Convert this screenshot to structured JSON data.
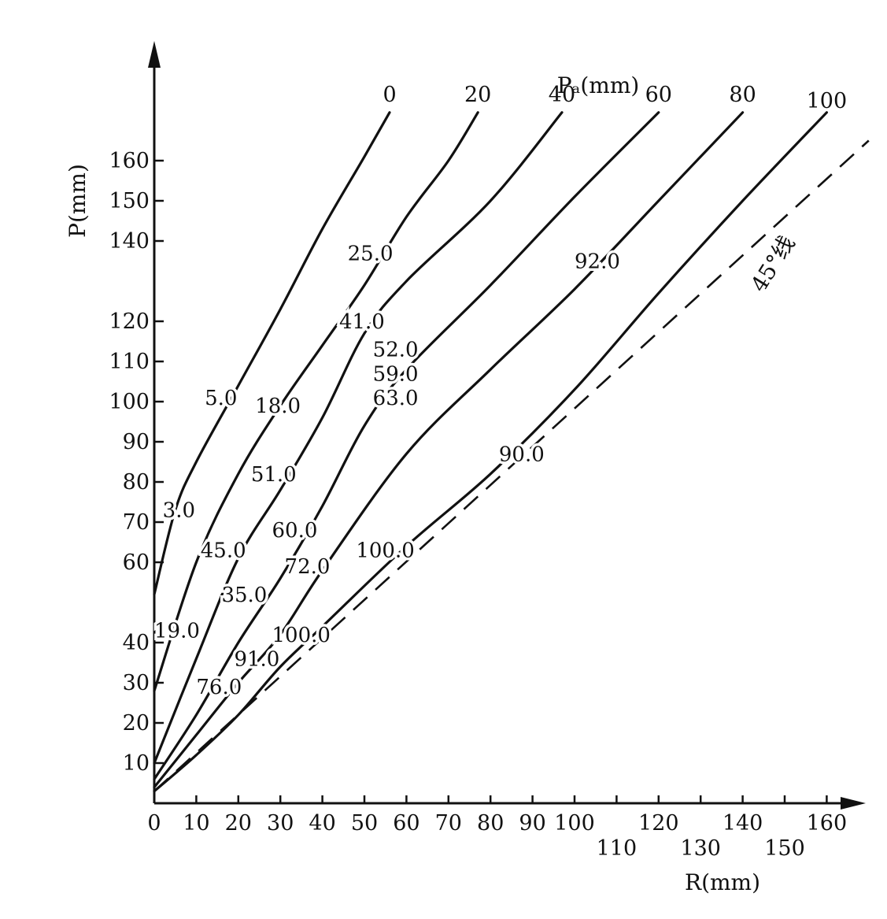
{
  "chart_data": {
    "type": "line",
    "title": "",
    "xlabel": "R(mm)",
    "ylabel": "P(mm)",
    "legend_title": "Pₐ(mm)",
    "xlim": [
      0,
      170
    ],
    "ylim": [
      0,
      180
    ],
    "x_ticks": [
      {
        "value": 0,
        "label": "0"
      },
      {
        "value": 10,
        "label": "10"
      },
      {
        "value": 20,
        "label": "20"
      },
      {
        "value": 30,
        "label": "30"
      },
      {
        "value": 40,
        "label": "40"
      },
      {
        "value": 50,
        "label": "50"
      },
      {
        "value": 60,
        "label": "60"
      },
      {
        "value": 70,
        "label": "70"
      },
      {
        "value": 80,
        "label": "80"
      },
      {
        "value": 90,
        "label": "90"
      },
      {
        "value": 100,
        "label": "100"
      },
      {
        "value": 110,
        "label": "110"
      },
      {
        "value": 120,
        "label": "120"
      },
      {
        "value": 130,
        "label": "130"
      },
      {
        "value": 140,
        "label": "140"
      },
      {
        "value": 150,
        "label": "150"
      },
      {
        "value": 160,
        "label": "160"
      }
    ],
    "y_ticks": [
      {
        "value": 10,
        "label": "10"
      },
      {
        "value": 20,
        "label": "20"
      },
      {
        "value": 30,
        "label": "30"
      },
      {
        "value": 40,
        "label": "40"
      },
      {
        "value": 60,
        "label": "60"
      },
      {
        "value": 70,
        "label": "70"
      },
      {
        "value": 80,
        "label": "80"
      },
      {
        "value": 90,
        "label": "90"
      },
      {
        "value": 100,
        "label": "100"
      },
      {
        "value": 110,
        "label": "110"
      },
      {
        "value": 120,
        "label": "120"
      },
      {
        "value": 140,
        "label": "140"
      },
      {
        "value": 150,
        "label": "150"
      },
      {
        "value": 160,
        "label": "160"
      }
    ],
    "reference_line": {
      "label": "45°线",
      "points": [
        [
          0,
          3
        ],
        [
          170,
          165
        ]
      ]
    },
    "series": [
      {
        "name": "0",
        "points": [
          [
            0,
            52
          ],
          [
            5,
            73
          ],
          [
            10,
            85
          ],
          [
            20,
            104
          ],
          [
            30,
            123
          ],
          [
            40,
            143
          ],
          [
            50,
            161
          ],
          [
            56,
            172
          ]
        ]
      },
      {
        "name": "20",
        "points": [
          [
            0,
            28
          ],
          [
            10,
            60
          ],
          [
            20,
            82
          ],
          [
            30,
            99
          ],
          [
            40,
            114
          ],
          [
            50,
            129
          ],
          [
            60,
            146
          ],
          [
            70,
            160
          ],
          [
            77,
            172
          ]
        ]
      },
      {
        "name": "40",
        "points": [
          [
            0,
            10
          ],
          [
            10,
            36
          ],
          [
            20,
            61
          ],
          [
            30,
            78
          ],
          [
            40,
            96
          ],
          [
            50,
            117
          ],
          [
            60,
            130
          ],
          [
            80,
            150
          ],
          [
            97,
            172
          ]
        ]
      },
      {
        "name": "60",
        "points": [
          [
            0,
            6
          ],
          [
            10,
            22
          ],
          [
            20,
            40
          ],
          [
            30,
            56
          ],
          [
            40,
            74
          ],
          [
            50,
            94
          ],
          [
            60,
            108
          ],
          [
            80,
            129
          ],
          [
            100,
            151
          ],
          [
            120,
            172
          ]
        ]
      },
      {
        "name": "80",
        "points": [
          [
            0,
            4
          ],
          [
            10,
            17
          ],
          [
            20,
            30
          ],
          [
            30,
            42
          ],
          [
            40,
            58
          ],
          [
            60,
            87
          ],
          [
            80,
            108
          ],
          [
            100,
            128
          ],
          [
            120,
            150
          ],
          [
            140,
            172
          ]
        ]
      },
      {
        "name": "100",
        "points": [
          [
            0,
            3
          ],
          [
            10,
            12
          ],
          [
            20,
            22
          ],
          [
            30,
            34
          ],
          [
            40,
            44
          ],
          [
            60,
            64
          ],
          [
            80,
            82
          ],
          [
            100,
            103
          ],
          [
            120,
            127
          ],
          [
            140,
            150
          ],
          [
            160,
            172
          ]
        ]
      }
    ],
    "annotations": [
      {
        "text": "5.0",
        "x": 12,
        "y": 101
      },
      {
        "text": "3.0",
        "x": 2,
        "y": 73
      },
      {
        "text": "19.0",
        "x": 0,
        "y": 43
      },
      {
        "text": "25.0",
        "x": 46,
        "y": 137
      },
      {
        "text": "18.0",
        "x": 24,
        "y": 99
      },
      {
        "text": "45.0",
        "x": 11,
        "y": 63
      },
      {
        "text": "76.0",
        "x": 10,
        "y": 29
      },
      {
        "text": "41.0",
        "x": 44,
        "y": 120
      },
      {
        "text": "51.0",
        "x": 23,
        "y": 82
      },
      {
        "text": "35.0",
        "x": 16,
        "y": 52
      },
      {
        "text": "91.0",
        "x": 19,
        "y": 36
      },
      {
        "text": "52.0",
        "x": 52,
        "y": 113
      },
      {
        "text": "59.0",
        "x": 52,
        "y": 107
      },
      {
        "text": "63.0",
        "x": 52,
        "y": 101
      },
      {
        "text": "60.0",
        "x": 28,
        "y": 68
      },
      {
        "text": "72.0",
        "x": 31,
        "y": 59
      },
      {
        "text": "100.0",
        "x": 28,
        "y": 42
      },
      {
        "text": "92.0",
        "x": 100,
        "y": 135
      },
      {
        "text": "90.0",
        "x": 82,
        "y": 87
      },
      {
        "text": "100.0",
        "x": 48,
        "y": 63
      }
    ]
  }
}
